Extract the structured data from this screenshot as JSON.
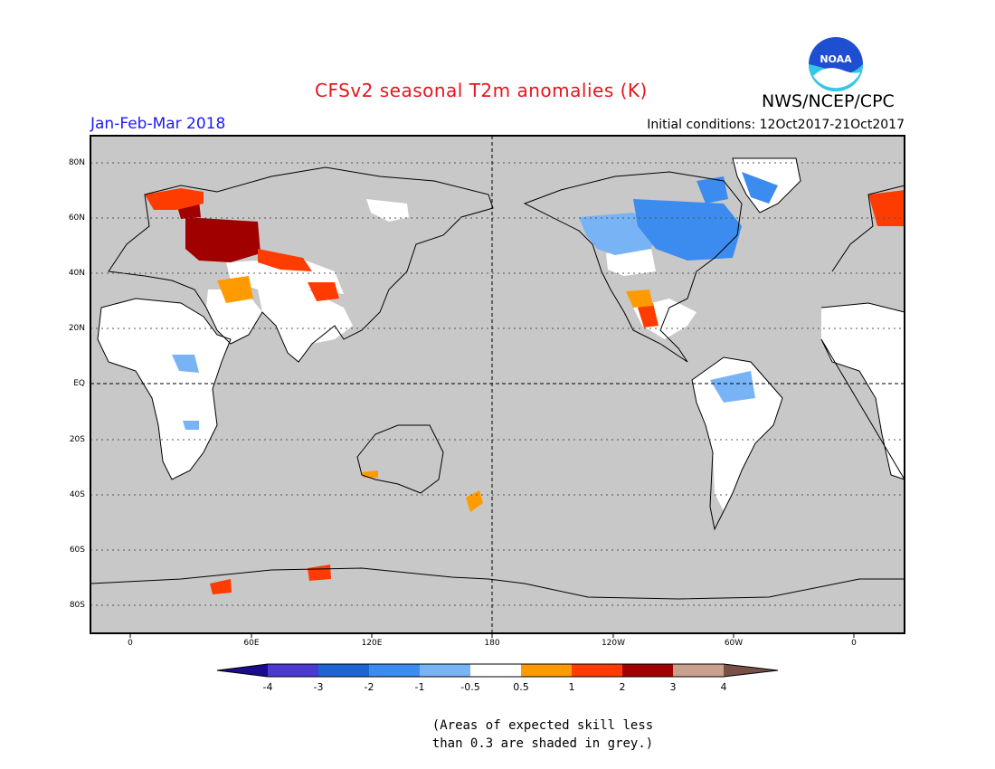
{
  "header": {
    "title": "CFSv2 seasonal T2m anomalies (K)",
    "agency": "NWS/NCEP/CPC",
    "period": "Jan-Feb-Mar 2018",
    "initial_conditions": "Initial conditions: 12Oct2017-21Oct2017",
    "logo_text": "NOAA"
  },
  "axes": {
    "lat_labels": [
      "80N",
      "60N",
      "40N",
      "20N",
      "EQ",
      "20S",
      "40S",
      "60S",
      "80S"
    ],
    "lon_labels": [
      "0",
      "60E",
      "120E",
      "180",
      "120W",
      "60W",
      "0"
    ]
  },
  "colorbar": {
    "labels": [
      "-4",
      "-3",
      "-2",
      "-1",
      "-0.5",
      "0.5",
      "1",
      "2",
      "3",
      "4"
    ],
    "colors": [
      "#1a0c8c",
      "#4a3ad0",
      "#1e64d2",
      "#3c8cf0",
      "#78b4f5",
      "#ffffff",
      "#ff9b00",
      "#ff3c00",
      "#a00000",
      "#c8a08c",
      "#785046"
    ]
  },
  "note": {
    "line1": "(Areas of expected skill less",
    "line2": "than 0.3 are shaded in grey.)"
  },
  "colors": {
    "ocean_grey": "#c8c8c8",
    "white_land": "#ffffff",
    "dark_red": "#a00000",
    "red": "#ff3c00",
    "orange": "#ff9b00",
    "light_blue": "#78b4f5",
    "blue": "#3c8cf0"
  }
}
